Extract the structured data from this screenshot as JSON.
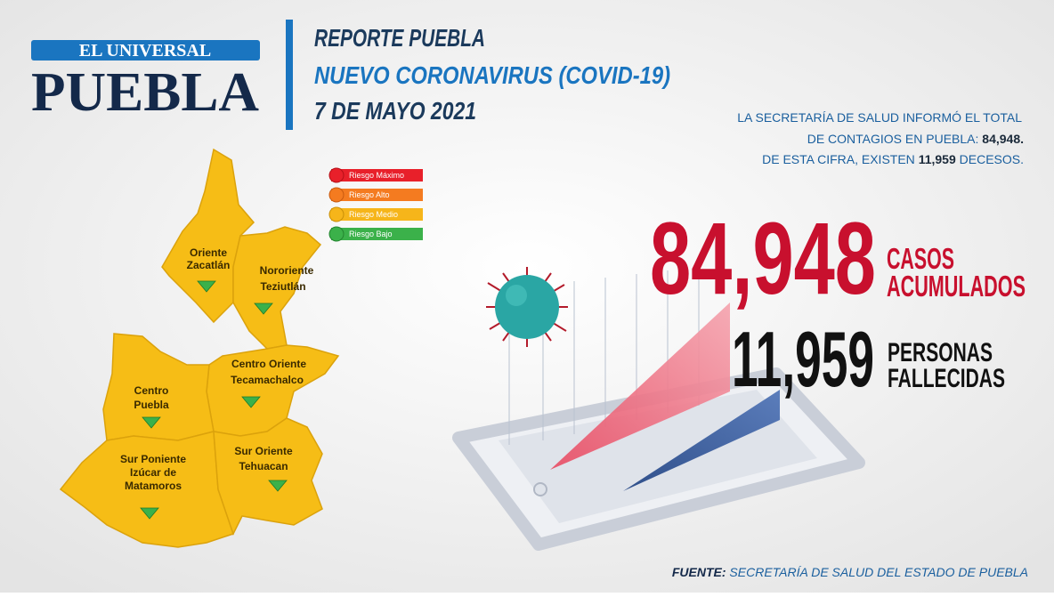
{
  "logo": {
    "brand": "EL UNIVERSAL",
    "city": "PUEBLA"
  },
  "header": {
    "title": "REPORTE PUEBLA",
    "subtitle": "NUEVO CORONAVIRUS (COVID-19)",
    "date": "7 DE MAYO 2021"
  },
  "summary": {
    "line1": "LA SECRETARÍA DE SALUD  INFORMÓ EL TOTAL",
    "line2": "DE CONTAGIOS EN PUEBLA:",
    "cases": "84,948.",
    "line3": "DE ESTA CIFRA, EXISTEN",
    "deaths": "11,959",
    "line3_end": "DECESOS."
  },
  "legend": [
    "Riesgo Máximo",
    "Riesgo Alto",
    "Riesgo Medio",
    "Riesgo Bajo"
  ],
  "regions": [
    {
      "line1": "Oriente",
      "line2": "Zacatlán"
    },
    {
      "line1": "Nororiente",
      "line2": "Teziutlán"
    },
    {
      "line1": "Centro Oriente",
      "line2": "Tecamachalco"
    },
    {
      "line1": "Centro",
      "line2": "Puebla"
    },
    {
      "line1": "Sur Poniente",
      "line2": "Izúcar de",
      "line3": "Matamoros"
    },
    {
      "line1": "Sur Oriente",
      "line2": "Tehuacan"
    }
  ],
  "stats": [
    {
      "value": "84,948",
      "label1": "CASOS",
      "label2": "ACUMULADOS"
    },
    {
      "value": "11,959",
      "label1": "PERSONAS",
      "label2": "FALLECIDAS"
    }
  ],
  "source": {
    "label": "FUENTE:",
    "text": "SECRETARÍA DE SALUD DEL ESTADO DE PUEBLA"
  }
}
